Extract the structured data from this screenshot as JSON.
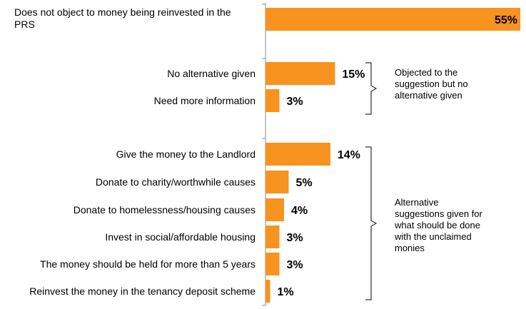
{
  "chart_data": {
    "type": "bar",
    "orientation": "horizontal",
    "categories": [
      "Does not object to money being reinvested in the PRS",
      "No alternative given",
      "Need more information",
      "Give the money to the Landlord",
      "Donate to charity/worthwhile causes",
      "Donate to homelessness/housing causes",
      "Invest in social/affordable housing",
      "The money should be held for more than 5 years",
      "Reinvest the money in the tenancy deposit scheme"
    ],
    "values": [
      55,
      15,
      3,
      14,
      5,
      4,
      3,
      3,
      1
    ],
    "value_labels": [
      "55%",
      "15%",
      "3%",
      "14%",
      "5%",
      "4%",
      "3%",
      "3%",
      "1%"
    ],
    "groups": [
      {
        "text": "Objected to the suggestion but no alternative given"
      },
      {
        "text": "Alternative suggestions given for what should be done with the unclaimed monies"
      }
    ],
    "bar_color": "#F7931E",
    "xlim": [
      0,
      55
    ],
    "grid": false
  }
}
